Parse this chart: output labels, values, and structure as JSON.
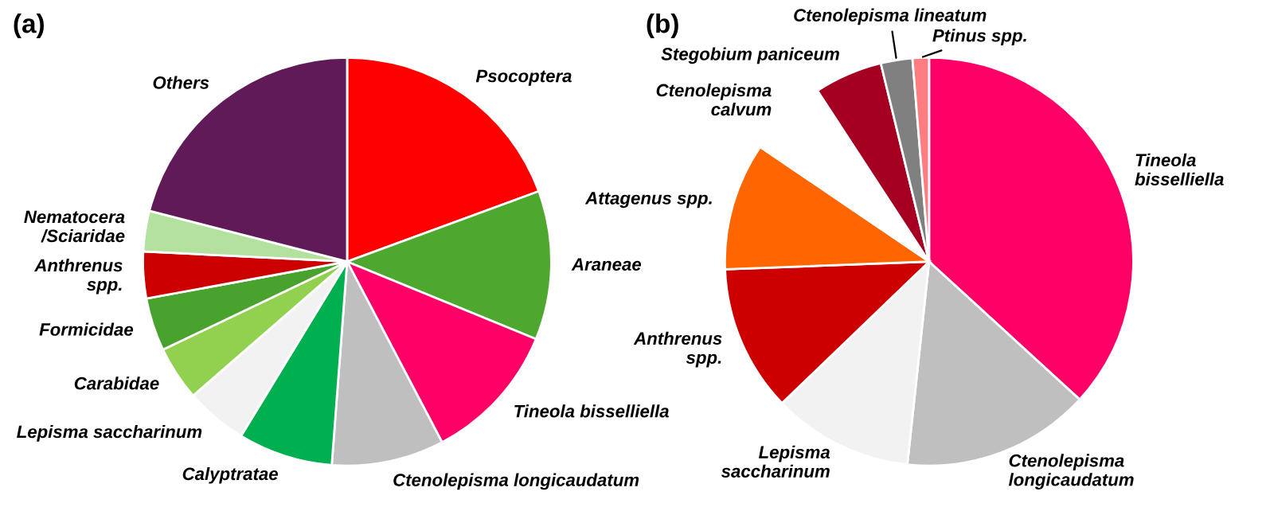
{
  "chart_data": [
    {
      "type": "pie",
      "title": "(a)",
      "categories": [
        "Psocoptera",
        "Araneae",
        "Tineola bisselliella",
        "Ctenolepisma longicaudatum",
        "Calyptratae",
        "Lepisma saccharinum",
        "Carabidae",
        "Formicidae",
        "Anthrenus\nspp.",
        "Nematocera\n/Sciaridae",
        "Others"
      ],
      "values": [
        19.4,
        11.8,
        11.1,
        8.9,
        7.5,
        4.9,
        4.3,
        4.2,
        3.7,
        3.2,
        21.0
      ],
      "colors": [
        "#ff0000",
        "#4ea72e",
        "#ff0066",
        "#bfbfbf",
        "#00b050",
        "#f2f2f2",
        "#92d050",
        "#4aa22e",
        "#cc0000",
        "#b4e0a0",
        "#611a58"
      ]
    },
    {
      "type": "pie",
      "title": "(b)",
      "categories": [
        "Tineola\nbisselliella",
        "Ctenolepisma\nlongicaudatum",
        "Lepisma\nsaccharinum",
        "Anthrenus\nspp.",
        "Attagenus spp.",
        "Ctenolepisma\ncalvum",
        "Stegobium paniceum",
        "Ctenolepisma lineatum",
        "Ptinus spp."
      ],
      "values": [
        36.8,
        14.9,
        11.1,
        11.6,
        10.1,
        6.3,
        5.4,
        2.5,
        1.3
      ],
      "colors": [
        "#ff0066",
        "#bfbfbf",
        "#f2f2f2",
        "#cc0000",
        "#ff6600",
        "#ffffff",
        "#a50021",
        "#808080",
        "#ff7c80"
      ]
    }
  ]
}
